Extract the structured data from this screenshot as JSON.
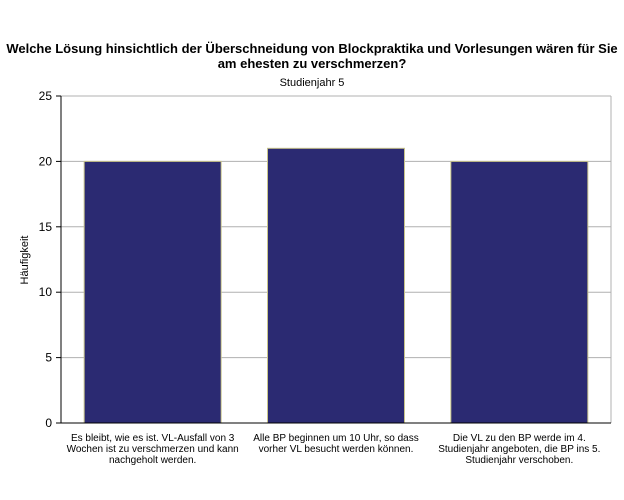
{
  "chart_data": {
    "type": "bar",
    "title": "Welche Lösung hinsichtlich der Überschneidung von Blockpraktika und Vorlesungen wären für Sie am ehesten zu verschmerzen?",
    "subtitle": "Studienjahr 5",
    "ylabel": "Häufigkeit",
    "xlabel": "",
    "ylim": [
      0,
      25
    ],
    "yticks": [
      0,
      5,
      10,
      15,
      20,
      25
    ],
    "grid": true,
    "categories": [
      "Es bleibt, wie es ist. VL-Ausfall von 3 Wochen ist zu verschmerzen und kann nachgeholt werden.",
      "Alle BP beginnen um 10 Uhr, so dass vorher VL besucht werden können.",
      "Die VL zu den BP werde im 4. Studienjahr angeboten, die BP ins 5. Studienjahr verschoben."
    ],
    "values": [
      20,
      21,
      20
    ],
    "colors": {
      "bar": "#2b2a72",
      "bar_edge": "#c8c48a",
      "plot_bg": "#ffffff",
      "grid": "#b0b0b0"
    }
  }
}
